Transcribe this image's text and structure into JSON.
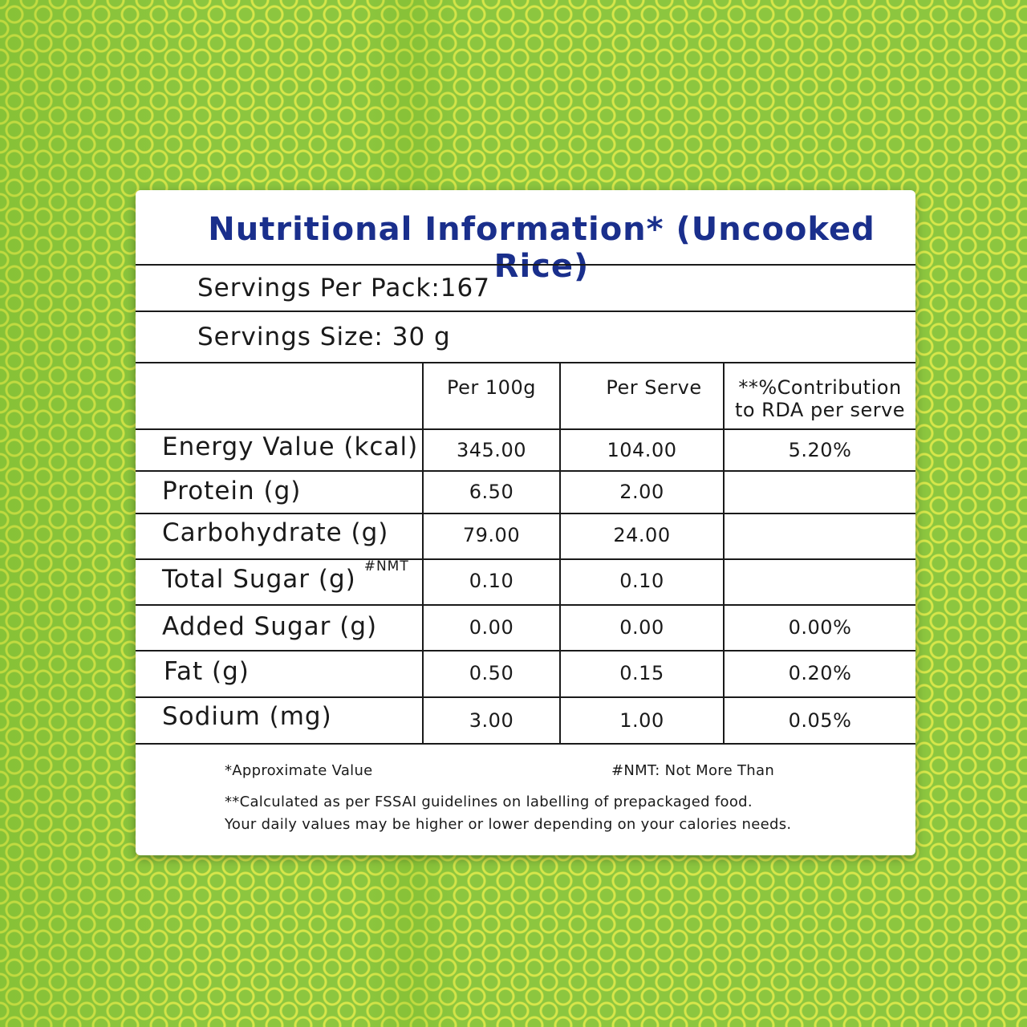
{
  "title": "Nutritional Information* (Uncooked Rice)",
  "servings_per_pack": "Servings Per Pack:167",
  "serving_size": "Servings Size: 30 g",
  "columns": {
    "per100": "Per 100g",
    "perServe": "Per Serve",
    "rda_line1": "**%Contribution",
    "rda_line2": "to RDA per serve"
  },
  "rows": [
    {
      "label": "Energy Value (kcal)",
      "note": "",
      "per100": "345.00",
      "perServe": "104.00",
      "rda": "5.20%"
    },
    {
      "label": "Protein (g)",
      "note": "",
      "per100": "6.50",
      "perServe": "2.00",
      "rda": ""
    },
    {
      "label": "Carbohydrate (g)",
      "note": "",
      "per100": "79.00",
      "perServe": "24.00",
      "rda": ""
    },
    {
      "label": "Total Sugar (g)",
      "note": "#NMT",
      "per100": "0.10",
      "perServe": "0.10",
      "rda": ""
    },
    {
      "label": "Added Sugar (g)",
      "note": "",
      "per100": "0.00",
      "perServe": "0.00",
      "rda": "0.00%"
    },
    {
      "label": "Fat (g)",
      "note": "",
      "per100": "0.50",
      "perServe": "0.15",
      "rda": "0.20%"
    },
    {
      "label": "Sodium (mg)",
      "note": "",
      "per100": "3.00",
      "perServe": "1.00",
      "rda": "0.05%"
    }
  ],
  "footnotes": {
    "approx": "*Approximate Value",
    "nmt": "#NMT: Not More Than",
    "fssai": "**Calculated as per FSSAI guidelines on labelling of prepackaged food.",
    "daily": "Your daily values may be higher or lower depending on your calories needs."
  },
  "colors": {
    "title": "#1a2f8c",
    "background": "#8cc63f",
    "pattern": "#d7e64a"
  }
}
